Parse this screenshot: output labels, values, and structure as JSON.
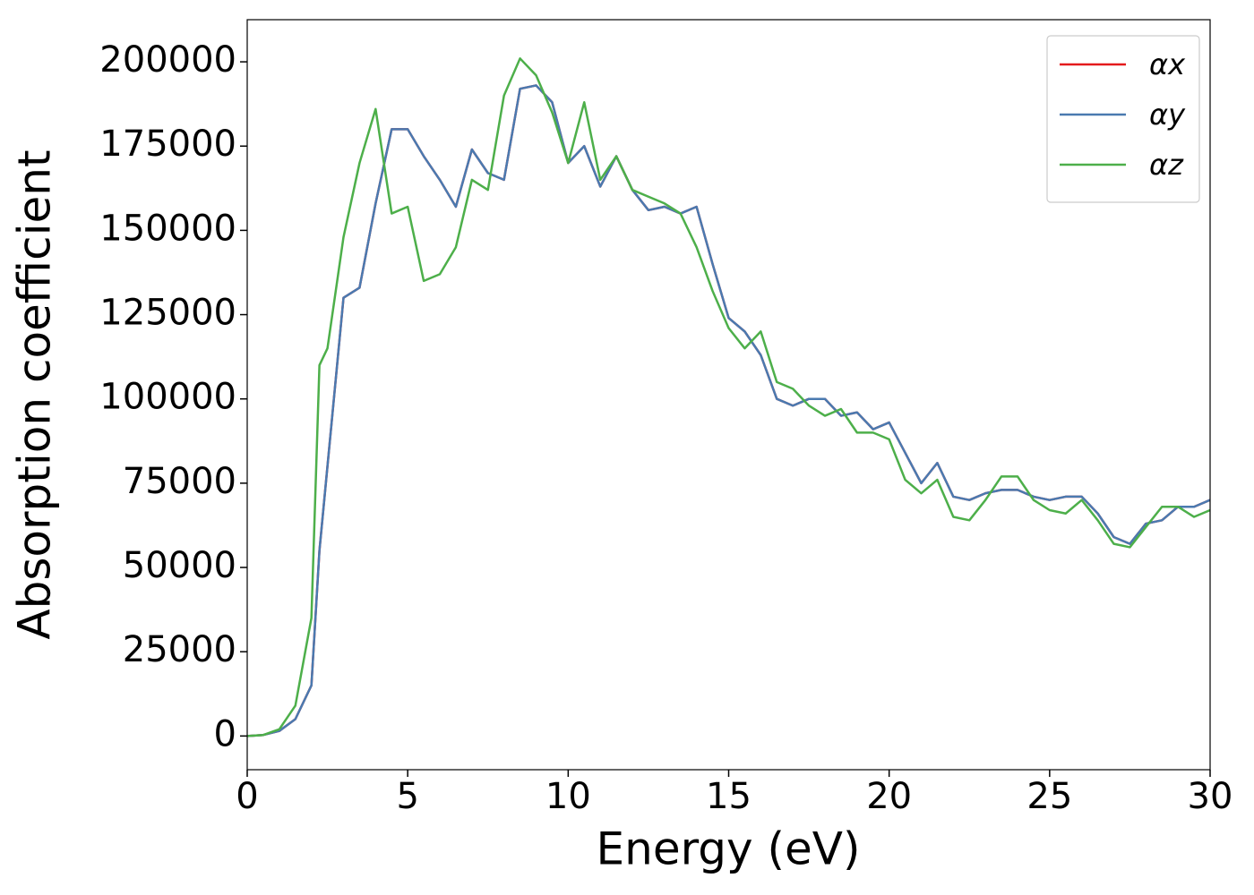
{
  "chart_data": {
    "type": "line",
    "xlabel": "Energy (eV)",
    "ylabel": "Absorption coefficient",
    "x": [
      0,
      0.5,
      1,
      1.5,
      2,
      2.25,
      2.5,
      3,
      3.5,
      4,
      4.5,
      5,
      5.5,
      6,
      6.5,
      7,
      7.5,
      8,
      8.5,
      9,
      9.5,
      10,
      10.5,
      11,
      11.5,
      12,
      12.5,
      13,
      13.5,
      14,
      14.5,
      15,
      15.5,
      16,
      16.5,
      17,
      17.5,
      18,
      18.5,
      19,
      19.5,
      20,
      20.5,
      21,
      21.5,
      22,
      22.5,
      23,
      23.5,
      24,
      24.5,
      25,
      25.5,
      26,
      26.5,
      27,
      27.5,
      28,
      28.5,
      29,
      29.5,
      30
    ],
    "series": [
      {
        "name": "αx",
        "color": "#e41a1c",
        "values": [
          0,
          300,
          1500,
          5000,
          15000,
          55000,
          80000,
          130000,
          133000,
          158000,
          180000,
          180000,
          172000,
          165000,
          157000,
          174000,
          167000,
          165000,
          192000,
          193000,
          188000,
          170000,
          175000,
          163000,
          172000,
          162000,
          156000,
          157000,
          155000,
          157000,
          140000,
          124000,
          120000,
          113000,
          100000,
          98000,
          100000,
          100000,
          95000,
          96000,
          91000,
          93000,
          84000,
          75000,
          81000,
          71000,
          70000,
          72000,
          73000,
          73000,
          71000,
          70000,
          71000,
          71000,
          66000,
          59000,
          57000,
          63000,
          64000,
          68000,
          68000,
          70000
        ]
      },
      {
        "name": "αy",
        "color": "#4a7ab0",
        "values": [
          0,
          300,
          1500,
          5000,
          15000,
          55000,
          80000,
          130000,
          133000,
          158000,
          180000,
          180000,
          172000,
          165000,
          157000,
          174000,
          167000,
          165000,
          192000,
          193000,
          188000,
          170000,
          175000,
          163000,
          172000,
          162000,
          156000,
          157000,
          155000,
          157000,
          140000,
          124000,
          120000,
          113000,
          100000,
          98000,
          100000,
          100000,
          95000,
          96000,
          91000,
          93000,
          84000,
          75000,
          81000,
          71000,
          70000,
          72000,
          73000,
          73000,
          71000,
          70000,
          71000,
          71000,
          66000,
          59000,
          57000,
          63000,
          64000,
          68000,
          68000,
          70000
        ]
      },
      {
        "name": "αz",
        "color": "#4daf4a",
        "values": [
          0,
          300,
          2000,
          9000,
          35000,
          110000,
          115000,
          148000,
          170000,
          186000,
          155000,
          157000,
          135000,
          137000,
          145000,
          165000,
          162000,
          190000,
          201000,
          196000,
          185000,
          170000,
          188000,
          165000,
          172000,
          162000,
          160000,
          158000,
          155000,
          145000,
          132000,
          121000,
          115000,
          120000,
          105000,
          103000,
          98000,
          95000,
          97000,
          90000,
          90000,
          88000,
          76000,
          72000,
          76000,
          65000,
          64000,
          70000,
          77000,
          77000,
          70000,
          67000,
          66000,
          70000,
          64000,
          57000,
          56000,
          62000,
          68000,
          68000,
          65000,
          67000
        ]
      }
    ],
    "xlim": [
      0,
      30
    ],
    "xticks": [
      0,
      5,
      10,
      15,
      20,
      25,
      30
    ],
    "ylim": [
      -10000,
      212500
    ],
    "yticks": [
      0,
      25000,
      50000,
      75000,
      100000,
      125000,
      150000,
      175000,
      200000
    ],
    "legend": "upper right",
    "grid": false
  }
}
